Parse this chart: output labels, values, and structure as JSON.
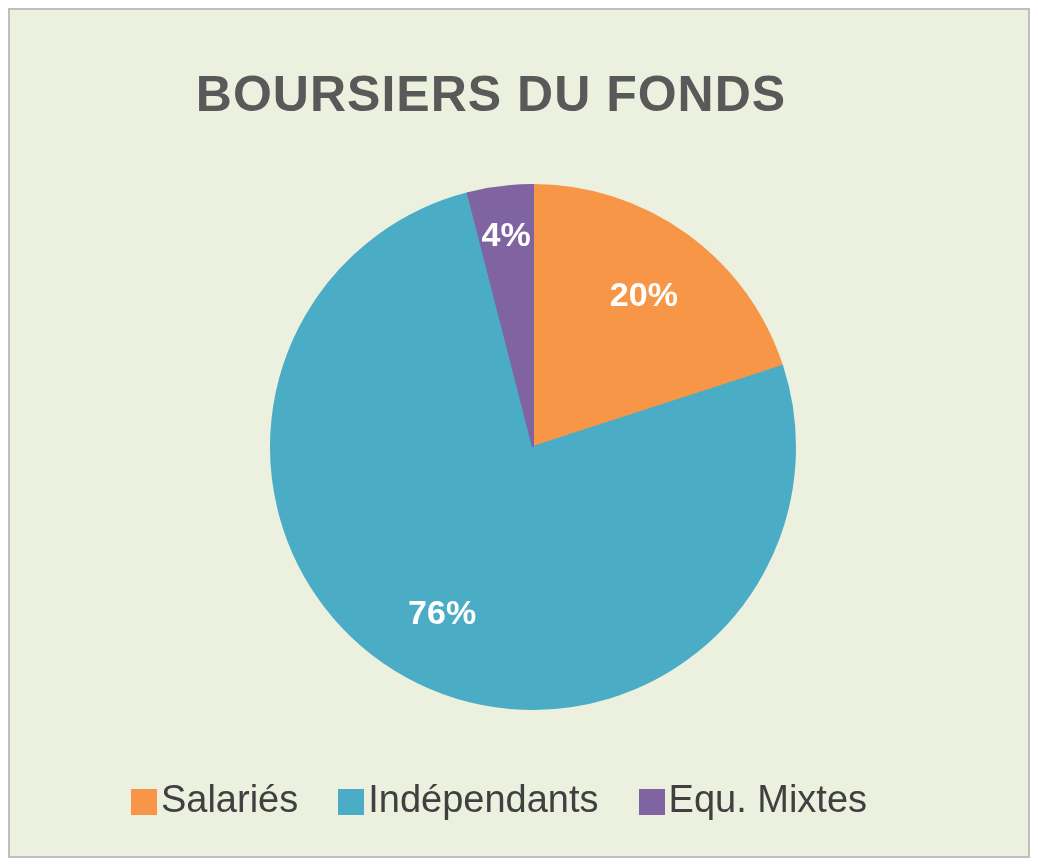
{
  "chart_data": {
    "type": "pie",
    "title": "BOURSIERS DU FONDS",
    "categories": [
      "Salariés",
      "Indépendants",
      "Equ. Mixtes"
    ],
    "values": [
      20,
      76,
      4
    ],
    "colors": [
      "#f79646",
      "#4bacc6",
      "#8064a2"
    ],
    "value_labels": [
      "20%",
      "76%",
      "4%"
    ],
    "legend": "bottom"
  }
}
